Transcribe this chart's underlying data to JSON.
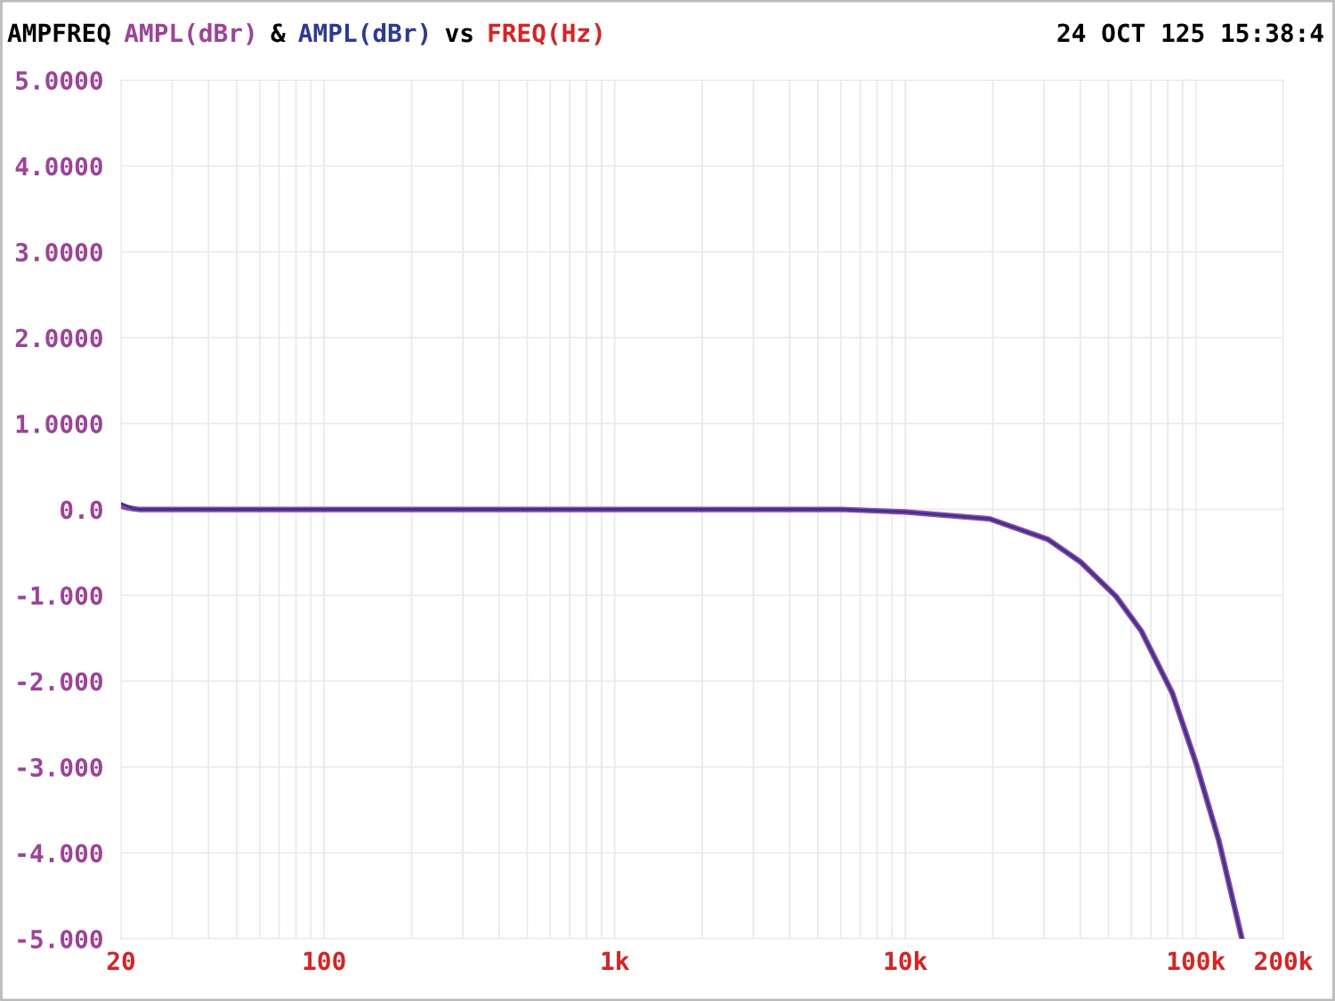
{
  "chart_data": {
    "type": "line",
    "title": "AMPFREQ",
    "xlabel": "FREQ(Hz)",
    "annotations": [
      "&",
      "vs",
      "24 OCT 125 15:38:4"
    ],
    "log": "x",
    "grid": true,
    "line_style": "solid",
    "marker": "none",
    "xlim": [
      20,
      200000
    ],
    "xticks": [
      20,
      {
        "value": 100,
        "label": "100"
      },
      {
        "value": 1000,
        "label": "1k"
      },
      {
        "value": 10000,
        "label": "10k"
      },
      {
        "value": 100000,
        "label": "100k"
      },
      {
        "value": 200000,
        "label": "200k"
      }
    ],
    "ylim": [
      -5,
      5
    ],
    "yticks": [
      {
        "value": 5,
        "label": "5.0000"
      },
      {
        "value": 4,
        "label": "4.0000"
      },
      {
        "value": 3,
        "label": "3.0000"
      },
      {
        "value": 2,
        "label": "2.0000"
      },
      {
        "value": 1,
        "label": "1.0000"
      },
      {
        "value": 0,
        "label": "0.0"
      },
      {
        "value": -1,
        "label": "-1.000"
      },
      {
        "value": -2,
        "label": "-2.000"
      },
      {
        "value": -3,
        "label": "-3.000"
      },
      {
        "value": -4,
        "label": "-4.000"
      },
      {
        "value": -5,
        "label": "-5.000"
      }
    ],
    "series": [
      {
        "name": "AMPL(dBr)",
        "color": "#a0409a",
        "x": [
          20,
          21,
          22,
          23,
          100,
          1000,
          6000,
          10000,
          19500,
          31000,
          40000,
          53000,
          65000,
          83000,
          100000,
          120000,
          144000
        ],
        "values": [
          0.04,
          0.02,
          0.01,
          0,
          0,
          0,
          0,
          -0.03,
          -0.11,
          -0.35,
          -0.61,
          -1.01,
          -1.42,
          -2.14,
          -2.95,
          -3.86,
          -5.0
        ]
      },
      {
        "name": "AMPL(dBr)",
        "color": "#2b3a9a",
        "x": [
          20,
          21,
          22,
          23,
          100,
          1000,
          6000,
          10000,
          19500,
          31000,
          40000,
          53000,
          65000,
          83000,
          100000,
          120000,
          144000
        ],
        "values": [
          0.07,
          0.04,
          0.01,
          0,
          0,
          0,
          0,
          -0.03,
          -0.11,
          -0.35,
          -0.61,
          -1.01,
          -1.42,
          -2.14,
          -2.95,
          -3.86,
          -5.0
        ]
      }
    ]
  }
}
